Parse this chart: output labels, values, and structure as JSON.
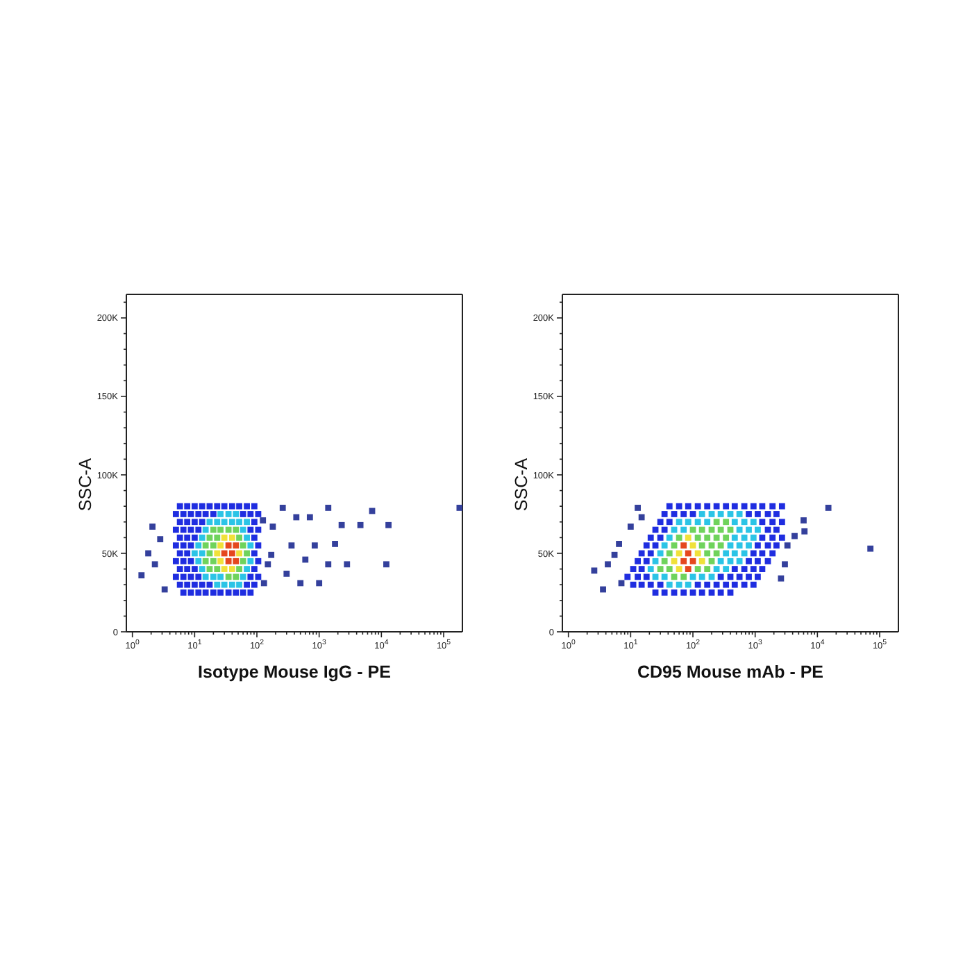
{
  "chart_data": [
    {
      "type": "scatter",
      "xlabel": "Isotype Mouse IgG - PE",
      "ylabel": "SSC-A",
      "log": "x",
      "marker": "square",
      "xlim": [
        0.8,
        200000
      ],
      "xticks": [
        {
          "value": 1,
          "label": "10$^{0}$"
        },
        {
          "value": 2,
          "label": null
        },
        {
          "value": 3,
          "label": null
        },
        {
          "value": 4,
          "label": null
        },
        {
          "value": 5,
          "label": null
        },
        {
          "value": 6,
          "label": null
        },
        {
          "value": 7,
          "label": null
        },
        {
          "value": 8,
          "label": null
        },
        {
          "value": 9,
          "label": null
        },
        {
          "value": 10,
          "label": "10$^{1}$"
        },
        {
          "value": 20,
          "label": null
        },
        {
          "value": 30,
          "label": null
        },
        {
          "value": 40,
          "label": null
        },
        {
          "value": 50,
          "label": null
        },
        {
          "value": 60,
          "label": null
        },
        {
          "value": 70,
          "label": null
        },
        {
          "value": 80,
          "label": null
        },
        {
          "value": 90,
          "label": null
        },
        {
          "value": 100,
          "label": "10$^{2}$"
        },
        {
          "value": 200,
          "label": null
        },
        {
          "value": 300,
          "label": null
        },
        {
          "value": 400,
          "label": null
        },
        {
          "value": 500,
          "label": null
        },
        {
          "value": 600,
          "label": null
        },
        {
          "value": 700,
          "label": null
        },
        {
          "value": 800,
          "label": null
        },
        {
          "value": 900,
          "label": null
        },
        {
          "value": 1000,
          "label": "10$^{3}$"
        },
        {
          "value": 2000,
          "label": null
        },
        {
          "value": 3000,
          "label": null
        },
        {
          "value": 4000,
          "label": null
        },
        {
          "value": 5000,
          "label": null
        },
        {
          "value": 6000,
          "label": null
        },
        {
          "value": 7000,
          "label": null
        },
        {
          "value": 8000,
          "label": null
        },
        {
          "value": 9000,
          "label": null
        },
        {
          "value": 10000,
          "label": "10$^{4}$"
        },
        {
          "value": 20000,
          "label": null
        },
        {
          "value": 30000,
          "label": null
        },
        {
          "value": 40000,
          "label": null
        },
        {
          "value": 50000,
          "label": null
        },
        {
          "value": 60000,
          "label": null
        },
        {
          "value": 70000,
          "label": null
        },
        {
          "value": 80000,
          "label": null
        },
        {
          "value": 90000,
          "label": null
        },
        {
          "value": 100000,
          "label": "10$^{5}$"
        }
      ],
      "ylim": [
        0,
        215000
      ],
      "yticks": [
        0,
        {
          "value": 10000,
          "label": null
        },
        {
          "value": 20000,
          "label": null
        },
        {
          "value": 30000,
          "label": null
        },
        {
          "value": 40000,
          "label": null
        },
        {
          "value": 50000,
          "label": "50K"
        },
        {
          "value": 60000,
          "label": null
        },
        {
          "value": 70000,
          "label": null
        },
        {
          "value": 80000,
          "label": null
        },
        {
          "value": 90000,
          "label": null
        },
        {
          "value": 100000,
          "label": "100K"
        },
        {
          "value": 110000,
          "label": null
        },
        {
          "value": 120000,
          "label": null
        },
        {
          "value": 130000,
          "label": null
        },
        {
          "value": 140000,
          "label": null
        },
        {
          "value": 150000,
          "label": "150K"
        },
        {
          "value": 160000,
          "label": null
        },
        {
          "value": 170000,
          "label": null
        },
        {
          "value": 180000,
          "label": null
        },
        {
          "value": 190000,
          "label": null
        },
        {
          "value": 200000,
          "label": "200K"
        },
        {
          "value": 210000,
          "label": null
        }
      ],
      "series": [
        {
          "color": "#34409c",
          "x": [
            1.4,
            1.8,
            2.8,
            2.3,
            3.3,
            2.1,
            125,
            150,
            170,
            180,
            130,
            260,
            300,
            360,
            430,
            500,
            600,
            710,
            850,
            1000,
            1400,
            1400,
            1800,
            2300,
            2800,
            4600,
            7100,
            12000,
            13000,
            180000
          ],
          "values": [
            36000,
            50000,
            59000,
            43000,
            27000,
            67000,
            71000,
            43000,
            49000,
            67000,
            31000,
            79000,
            37000,
            55000,
            73000,
            31000,
            46000,
            73000,
            55000,
            31000,
            79000,
            43000,
            56000,
            68000,
            43000,
            68000,
            77000,
            43000,
            68000,
            79000
          ]
        },
        {
          "color": "#1f2de0",
          "x": [
            6.6,
            8.7,
            11.5,
            15,
            20,
            26,
            35,
            46,
            60,
            79,
            5.8,
            7.6,
            10,
            13.2,
            17.4,
            69,
            91,
            5.0,
            6.6,
            8.7,
            11.5,
            79,
            105,
            5.8,
            7.6,
            10,
            91,
            5.0,
            6.6,
            8.7,
            105,
            5.8,
            7.6,
            91,
            5.0,
            6.6,
            8.7,
            105,
            5.8,
            7.6,
            10,
            91,
            5.0,
            6.6,
            8.7,
            11.5,
            79,
            105,
            5.8,
            7.6,
            10,
            13.2,
            91,
            5.0,
            6.6,
            8.7,
            11.5,
            15,
            20,
            60,
            79,
            105,
            5.8,
            7.6,
            10,
            13.2,
            17.4,
            23,
            30,
            40,
            52,
            69,
            91
          ],
          "values": [
            25000,
            25000,
            25000,
            25000,
            25000,
            25000,
            25000,
            25000,
            25000,
            25000,
            30000,
            30000,
            30000,
            30000,
            30000,
            30000,
            30000,
            35000,
            35000,
            35000,
            35000,
            35000,
            35000,
            40000,
            40000,
            40000,
            40000,
            45000,
            45000,
            45000,
            45000,
            50000,
            50000,
            50000,
            55000,
            55000,
            55000,
            55000,
            60000,
            60000,
            60000,
            60000,
            65000,
            65000,
            65000,
            65000,
            65000,
            65000,
            70000,
            70000,
            70000,
            70000,
            70000,
            75000,
            75000,
            75000,
            75000,
            75000,
            75000,
            75000,
            75000,
            75000,
            80000,
            80000,
            80000,
            80000,
            80000,
            80000,
            80000,
            80000,
            80000,
            80000,
            80000
          ]
        },
        {
          "color": "#2bc4e6",
          "x": [
            23,
            30,
            40,
            52,
            15,
            20,
            26,
            60,
            13.2,
            69,
            11.5,
            79,
            10,
            13.2,
            11.5,
            79,
            13.2,
            69,
            15,
            60,
            17.4,
            23,
            30,
            40,
            52,
            69,
            26,
            35,
            46
          ],
          "values": [
            30000,
            30000,
            30000,
            30000,
            35000,
            35000,
            35000,
            35000,
            40000,
            40000,
            45000,
            45000,
            50000,
            50000,
            55000,
            55000,
            60000,
            60000,
            65000,
            65000,
            70000,
            70000,
            70000,
            70000,
            70000,
            70000,
            75000,
            75000,
            75000
          ]
        },
        {
          "color": "#6fd35c",
          "x": [
            35,
            46,
            17.4,
            23,
            52,
            15,
            20,
            60,
            17.4,
            69,
            15,
            20,
            60,
            17.4,
            23,
            52,
            20,
            26,
            35,
            46
          ],
          "values": [
            35000,
            35000,
            40000,
            40000,
            40000,
            45000,
            45000,
            45000,
            50000,
            50000,
            55000,
            55000,
            55000,
            60000,
            60000,
            60000,
            65000,
            65000,
            65000,
            65000
          ]
        },
        {
          "color": "#f0e13a",
          "x": [
            30,
            40,
            26,
            23,
            52,
            26,
            30,
            40
          ],
          "values": [
            40000,
            40000,
            45000,
            50000,
            50000,
            55000,
            60000,
            60000
          ]
        },
        {
          "color": "#e5471e",
          "x": [
            35,
            46,
            30,
            40,
            35,
            46
          ],
          "values": [
            45000,
            45000,
            50000,
            50000,
            55000,
            55000
          ]
        }
      ]
    },
    {
      "type": "scatter",
      "xlabel": "CD95 Mouse mAb - PE",
      "ylabel": "SSC-A",
      "log": "x",
      "marker": "square",
      "xlim": [
        0.8,
        200000
      ],
      "xticks": [
        {
          "value": 1,
          "label": "10$^{0}$"
        },
        {
          "value": 2,
          "label": null
        },
        {
          "value": 3,
          "label": null
        },
        {
          "value": 4,
          "label": null
        },
        {
          "value": 5,
          "label": null
        },
        {
          "value": 6,
          "label": null
        },
        {
          "value": 7,
          "label": null
        },
        {
          "value": 8,
          "label": null
        },
        {
          "value": 9,
          "label": null
        },
        {
          "value": 10,
          "label": "10$^{1}$"
        },
        {
          "value": 20,
          "label": null
        },
        {
          "value": 30,
          "label": null
        },
        {
          "value": 40,
          "label": null
        },
        {
          "value": 50,
          "label": null
        },
        {
          "value": 60,
          "label": null
        },
        {
          "value": 70,
          "label": null
        },
        {
          "value": 80,
          "label": null
        },
        {
          "value": 90,
          "label": null
        },
        {
          "value": 100,
          "label": "10$^{2}$"
        },
        {
          "value": 200,
          "label": null
        },
        {
          "value": 300,
          "label": null
        },
        {
          "value": 400,
          "label": null
        },
        {
          "value": 500,
          "label": null
        },
        {
          "value": 600,
          "label": null
        },
        {
          "value": 700,
          "label": null
        },
        {
          "value": 800,
          "label": null
        },
        {
          "value": 900,
          "label": null
        },
        {
          "value": 1000,
          "label": "10$^{3}$"
        },
        {
          "value": 2000,
          "label": null
        },
        {
          "value": 3000,
          "label": null
        },
        {
          "value": 4000,
          "label": null
        },
        {
          "value": 5000,
          "label": null
        },
        {
          "value": 6000,
          "label": null
        },
        {
          "value": 7000,
          "label": null
        },
        {
          "value": 8000,
          "label": null
        },
        {
          "value": 9000,
          "label": null
        },
        {
          "value": 10000,
          "label": "10$^{4}$"
        },
        {
          "value": 20000,
          "label": null
        },
        {
          "value": 30000,
          "label": null
        },
        {
          "value": 40000,
          "label": null
        },
        {
          "value": 50000,
          "label": null
        },
        {
          "value": 60000,
          "label": null
        },
        {
          "value": 70000,
          "label": null
        },
        {
          "value": 80000,
          "label": null
        },
        {
          "value": 90000,
          "label": null
        },
        {
          "value": 100000,
          "label": "10$^{5}$"
        }
      ],
      "ylim": [
        0,
        215000
      ],
      "yticks": [
        0,
        {
          "value": 10000,
          "label": null
        },
        {
          "value": 20000,
          "label": null
        },
        {
          "value": 30000,
          "label": null
        },
        {
          "value": 40000,
          "label": null
        },
        {
          "value": 50000,
          "label": "50K"
        },
        {
          "value": 60000,
          "label": null
        },
        {
          "value": 70000,
          "label": null
        },
        {
          "value": 80000,
          "label": null
        },
        {
          "value": 90000,
          "label": null
        },
        {
          "value": 100000,
          "label": "100K"
        },
        {
          "value": 110000,
          "label": null
        },
        {
          "value": 120000,
          "label": null
        },
        {
          "value": 130000,
          "label": null
        },
        {
          "value": 140000,
          "label": null
        },
        {
          "value": 150000,
          "label": "150K"
        },
        {
          "value": 160000,
          "label": null
        },
        {
          "value": 170000,
          "label": null
        },
        {
          "value": 180000,
          "label": null
        },
        {
          "value": 190000,
          "label": null
        },
        {
          "value": 200000,
          "label": "200K"
        },
        {
          "value": 210000,
          "label": null
        }
      ],
      "series": [
        {
          "color": "#34409c",
          "x": [
            2.6,
            3.6,
            4.3,
            6.5,
            5.5,
            7.1,
            10,
            13,
            15,
            2600,
            3000,
            3300,
            4300,
            6000,
            6200,
            15000,
            71000
          ],
          "values": [
            39000,
            27000,
            43000,
            56000,
            49000,
            31000,
            67000,
            79000,
            73000,
            34000,
            43000,
            55000,
            61000,
            71000,
            64000,
            79000,
            53000
          ]
        },
        {
          "color": "#1f2de0",
          "x": [
            42,
            60,
            84,
            120,
            170,
            240,
            340,
            470,
            670,
            940,
            1300,
            1900,
            2700,
            35,
            50,
            71,
            100,
            790,
            1100,
            1600,
            2200,
            30,
            42,
            1300,
            1900,
            2700,
            25,
            35,
            1600,
            2200,
            21,
            30,
            1300,
            1900,
            2700,
            18,
            25,
            1100,
            1600,
            2200,
            15,
            21,
            940,
            1300,
            1900,
            13,
            18,
            790,
            1100,
            1600,
            11,
            15,
            470,
            670,
            940,
            1300,
            8.9,
            13,
            18,
            280,
            400,
            560,
            790,
            1100,
            11,
            15,
            21,
            30,
            120,
            170,
            240,
            340,
            470,
            670,
            940,
            25,
            35,
            50,
            71,
            100,
            140,
            200,
            280,
            400
          ],
          "values": [
            80000,
            80000,
            80000,
            80000,
            80000,
            80000,
            80000,
            80000,
            80000,
            80000,
            80000,
            80000,
            80000,
            75000,
            75000,
            75000,
            75000,
            75000,
            75000,
            75000,
            75000,
            70000,
            70000,
            70000,
            70000,
            70000,
            65000,
            65000,
            65000,
            65000,
            60000,
            60000,
            60000,
            60000,
            60000,
            55000,
            55000,
            55000,
            55000,
            55000,
            50000,
            50000,
            50000,
            50000,
            50000,
            45000,
            45000,
            45000,
            45000,
            45000,
            40000,
            40000,
            40000,
            40000,
            40000,
            40000,
            35000,
            35000,
            35000,
            35000,
            35000,
            35000,
            35000,
            35000,
            30000,
            30000,
            30000,
            30000,
            30000,
            30000,
            30000,
            30000,
            30000,
            30000,
            30000,
            25000,
            25000,
            25000,
            25000,
            25000,
            25000,
            25000,
            25000,
            25000
          ]
        },
        {
          "color": "#2bc4e6",
          "x": [
            140,
            200,
            280,
            400,
            560,
            60,
            84,
            120,
            170,
            470,
            670,
            940,
            50,
            71,
            560,
            790,
            1100,
            42,
            470,
            670,
            940,
            35,
            400,
            560,
            790,
            30,
            340,
            470,
            670,
            25,
            280,
            400,
            560,
            21,
            240,
            340,
            25,
            35,
            100,
            140,
            200,
            42,
            60,
            84
          ],
          "values": [
            75000,
            75000,
            75000,
            75000,
            75000,
            70000,
            70000,
            70000,
            70000,
            70000,
            70000,
            70000,
            65000,
            65000,
            65000,
            65000,
            65000,
            60000,
            60000,
            60000,
            60000,
            55000,
            55000,
            55000,
            55000,
            50000,
            50000,
            50000,
            50000,
            45000,
            45000,
            45000,
            45000,
            40000,
            40000,
            40000,
            35000,
            35000,
            35000,
            35000,
            35000,
            30000,
            30000,
            30000
          ]
        },
        {
          "color": "#6fd35c",
          "x": [
            240,
            340,
            100,
            140,
            200,
            280,
            400,
            60,
            120,
            170,
            240,
            340,
            50,
            140,
            200,
            280,
            42,
            170,
            240,
            35,
            200,
            30,
            42,
            120,
            170,
            50,
            71
          ],
          "values": [
            70000,
            70000,
            65000,
            65000,
            65000,
            65000,
            65000,
            60000,
            60000,
            60000,
            60000,
            60000,
            55000,
            55000,
            55000,
            55000,
            50000,
            50000,
            50000,
            45000,
            45000,
            40000,
            40000,
            40000,
            40000,
            35000,
            35000
          ]
        },
        {
          "color": "#f0e13a",
          "x": [
            100,
            60,
            120,
            50,
            140,
            60,
            84
          ],
          "values": [
            55000,
            50000,
            50000,
            45000,
            45000,
            40000,
            60000
          ]
        },
        {
          "color": "#e5471e",
          "x": [
            71,
            84,
            71,
            100,
            84
          ],
          "values": [
            55000,
            50000,
            45000,
            45000,
            40000
          ]
        }
      ]
    }
  ]
}
